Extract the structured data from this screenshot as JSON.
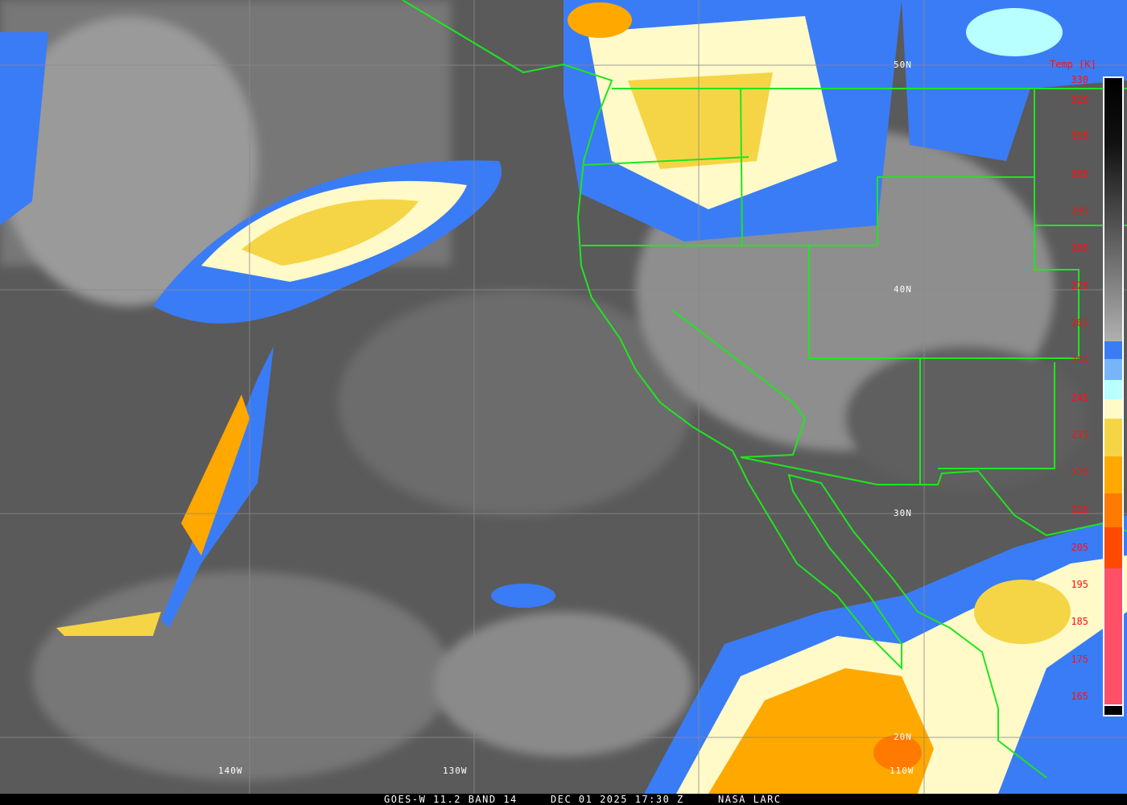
{
  "caption": {
    "satellite": "GOES-W 11.2 BAND 14",
    "datetime": "DEC 01 2025 17:30 Z",
    "source": "NASA LARC"
  },
  "grid_labels": {
    "lat": [
      "50N",
      "40N",
      "30N",
      "20N"
    ],
    "lon": [
      "140W",
      "130W",
      "110W"
    ]
  },
  "legend": {
    "title": "Temp [K]",
    "ticks": [
      "330",
      "325",
      "315",
      "305",
      "295",
      "285",
      "275",
      "265",
      "255",
      "245",
      "235",
      "225",
      "215",
      "205",
      "195",
      "185",
      "175",
      "165"
    ],
    "colors": {
      "warm_gray_top": "#000000",
      "gray_bottom": "#b0b0b0",
      "blue": "#3a7cf5",
      "light_blue": "#78b4fa",
      "cyan": "#b8ffff",
      "pale_yellow": "#fffac8",
      "yellow": "#f5d545",
      "orange": "#ffa800",
      "dark_orange": "#ff7a00",
      "red_orange": "#ff4a00",
      "pink": "#ff5068",
      "black": "#000000"
    }
  },
  "colors": {
    "border": "#1ee61e",
    "grid": "#8a8a8a",
    "label": "#ff1010"
  }
}
